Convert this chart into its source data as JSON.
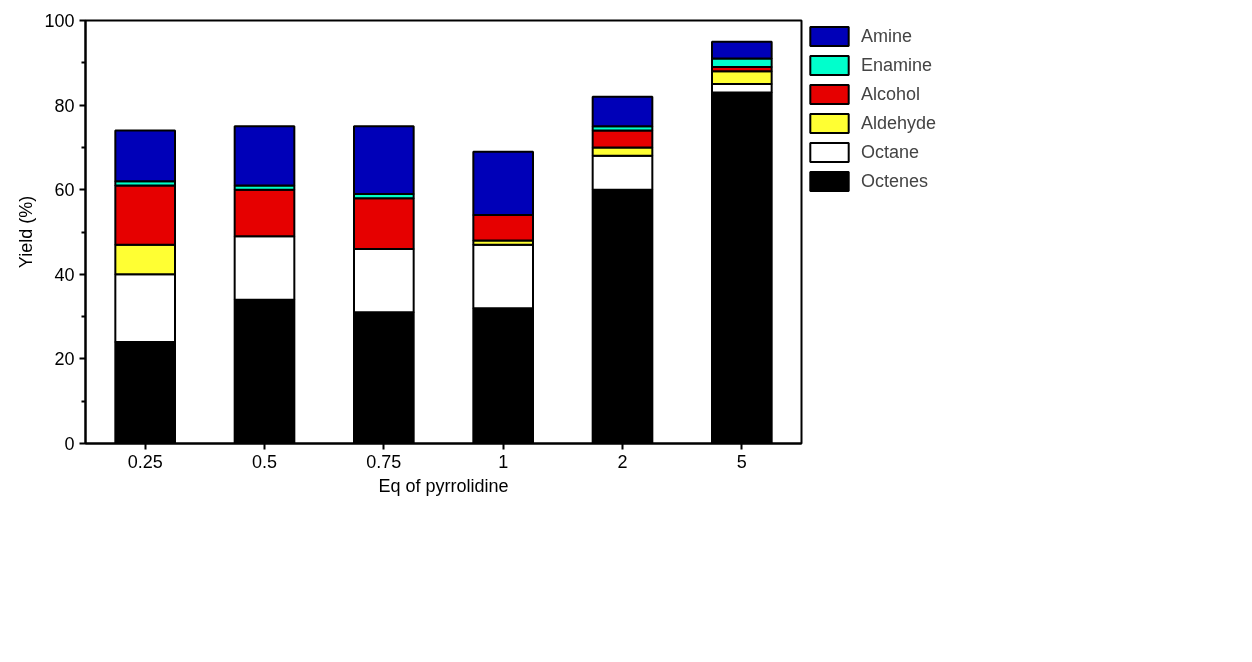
{
  "chart_data": {
    "type": "bar",
    "stacked": true,
    "xlabel": "Eq of pyrrolidine",
    "ylabel": "Yield (%)",
    "categories": [
      "0.25",
      "0.5",
      "0.75",
      "1",
      "2",
      "5"
    ],
    "series": [
      {
        "name": "Octenes",
        "color": "#000000",
        "values": [
          24,
          34,
          31,
          32,
          60,
          83
        ]
      },
      {
        "name": "Octane",
        "color": "#ffffff",
        "values": [
          16,
          15,
          15,
          15,
          8,
          2
        ]
      },
      {
        "name": "Aldehyde",
        "color": "#ffff33",
        "values": [
          7,
          null,
          null,
          1,
          2,
          3
        ]
      },
      {
        "name": "Alcohol",
        "color": "#e60000",
        "values": [
          14,
          11,
          12,
          6,
          4,
          1
        ]
      },
      {
        "name": "Enamine",
        "color": "#00ffcc",
        "values": [
          1,
          1,
          1,
          null,
          1,
          2
        ]
      },
      {
        "name": "Amine",
        "color": "#0000b8",
        "values": [
          12,
          14,
          16,
          15,
          7,
          4
        ]
      }
    ],
    "ylim": [
      0,
      100
    ],
    "yticks": [
      0,
      20,
      40,
      60,
      80,
      100
    ],
    "legend": "right",
    "grid": false
  }
}
